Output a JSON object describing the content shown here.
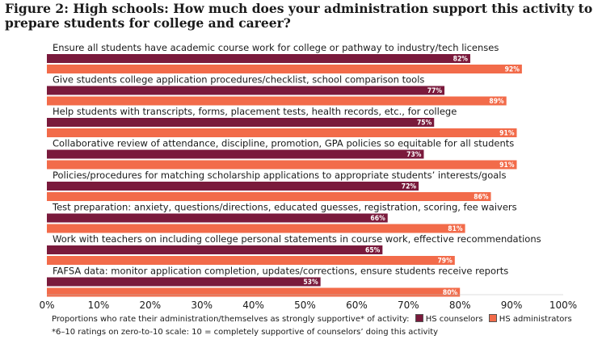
{
  "title": "Figure 2: High schools: How much does your administration support this activity to prepare students for college and career?",
  "legend": {
    "prefix": "Proportions who rate their administration/themselves as strongly supportive* of activity:",
    "counselors": "HS counselors",
    "administrators": "HS administrators"
  },
  "footnote": "*6–10 ratings on zero-to-10 scale: 10 = completely supportive of counselors’ doing this activity",
  "colors": {
    "counselors": "#7a1a3c",
    "administrators": "#f26b4a"
  },
  "chart_data": {
    "type": "bar",
    "orientation": "horizontal",
    "categories": [
      "Ensure all students have academic course work for college or pathway to industry/tech licenses",
      "Give students college application procedures/checklist, school comparison tools",
      "Help students with transcripts, forms, placement tests, health records, etc., for college",
      "Collaborative review of attendance, discipline, promotion, GPA policies so equitable for all students",
      "Policies/procedures for matching scholarship applications to appropriate students’ interests/goals",
      "Test preparation: anxiety, questions/directions, educated guesses, registration, scoring, fee waivers",
      "Work with teachers on including college personal statements in course work, effective recommendations",
      "FAFSA data: monitor application completion, updates/corrections, ensure students receive reports"
    ],
    "series": [
      {
        "name": "HS counselors",
        "values": [
          82,
          77,
          75,
          73,
          72,
          66,
          65,
          53
        ]
      },
      {
        "name": "HS administrators",
        "values": [
          92,
          89,
          91,
          91,
          86,
          81,
          79,
          80
        ]
      }
    ],
    "xlim": [
      0,
      100
    ],
    "ticks": [
      "0%",
      "10%",
      "20%",
      "30%",
      "40%",
      "50%",
      "60%",
      "70%",
      "80%",
      "90%",
      "100%"
    ],
    "value_suffix": "%",
    "legend_position": "bottom"
  }
}
